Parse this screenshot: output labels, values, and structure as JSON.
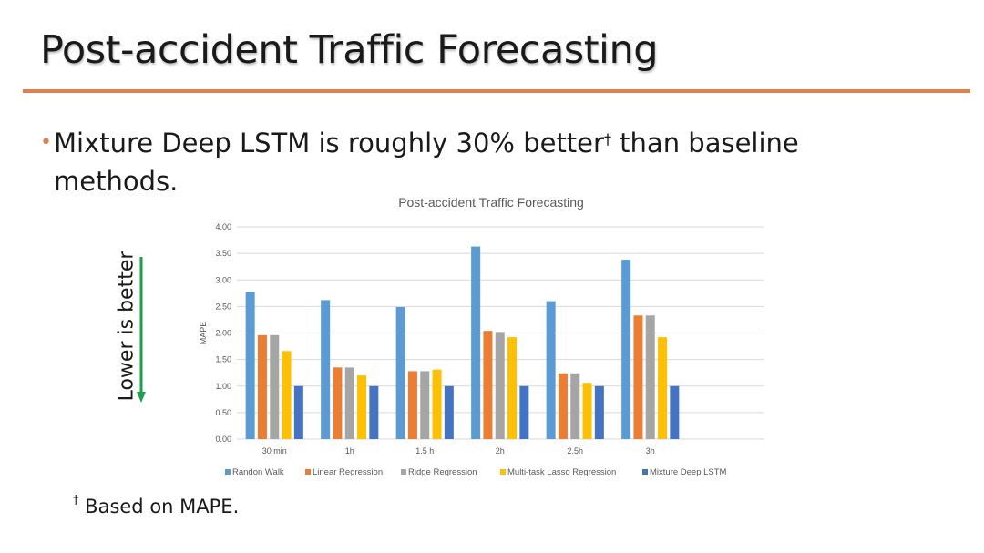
{
  "slide": {
    "title": "Post-accident Traffic Forecasting",
    "bullet_main": "Mixture Deep LSTM is roughly 30% better",
    "bullet_dagger": "†",
    "bullet_rest": " than baseline methods.",
    "footnote_dagger": "†",
    "footnote_text": " Based on MAPE.",
    "arrow_label": "Lower is better",
    "accent_color": "#e0804d",
    "arrow_color": "#16a34a"
  },
  "chart_data": {
    "type": "bar",
    "title": "Post-accident Traffic Forecasting",
    "xlabel": "",
    "ylabel": "MAPE",
    "ylim": [
      0,
      4
    ],
    "yticks": [
      "0.00",
      "0.50",
      "1.00",
      "1.50",
      "2.00",
      "2.50",
      "3.00",
      "3.50",
      "4.00"
    ],
    "grid": true,
    "legend_position": "bottom",
    "categories": [
      "30 min",
      "1h",
      "1.5 h",
      "2h",
      "2.5h",
      "3h"
    ],
    "series": [
      {
        "name": "Randon Walk",
        "color": "#5b9bd5",
        "values": [
          2.78,
          2.62,
          2.49,
          3.63,
          2.6,
          3.38
        ]
      },
      {
        "name": "Linear Regression",
        "color": "#ed7d31",
        "values": [
          1.96,
          1.35,
          1.28,
          2.04,
          1.24,
          2.33
        ]
      },
      {
        "name": "Ridge Regression",
        "color": "#a5a5a5",
        "values": [
          1.96,
          1.35,
          1.28,
          2.02,
          1.24,
          2.33
        ]
      },
      {
        "name": "Multi-task Lasso Regression",
        "color": "#ffc000",
        "values": [
          1.66,
          1.2,
          1.31,
          1.92,
          1.06,
          1.92
        ]
      },
      {
        "name": "Mixture Deep LSTM",
        "color": "#4472c4",
        "values": [
          1.0,
          1.0,
          1.0,
          1.0,
          1.0,
          1.0
        ]
      }
    ]
  }
}
